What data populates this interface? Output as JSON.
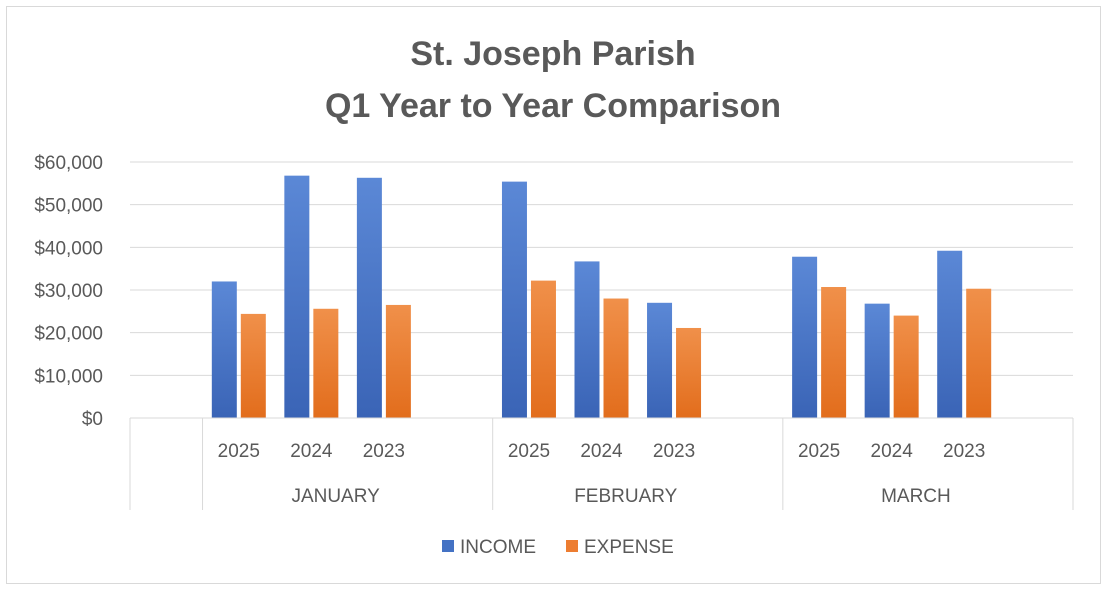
{
  "chart_data": {
    "type": "bar",
    "title_lines": [
      "St. Joseph Parish",
      "Q1 Year to Year Comparison"
    ],
    "xlabel": "",
    "ylabel": "",
    "ylim": [
      0,
      60000
    ],
    "y_ticks": [
      0,
      10000,
      20000,
      30000,
      40000,
      50000,
      60000
    ],
    "y_tick_labels": [
      "$0",
      "$10,000",
      "$20,000",
      "$30,000",
      "$40,000",
      "$50,000",
      "$60,000"
    ],
    "groups": [
      {
        "label": "JANUARY",
        "categories": [
          "2025",
          "2024",
          "2023"
        ]
      },
      {
        "label": "FEBRUARY",
        "categories": [
          "2025",
          "2024",
          "2023"
        ]
      },
      {
        "label": "MARCH",
        "categories": [
          "2025",
          "2024",
          "2023"
        ]
      }
    ],
    "series": [
      {
        "name": "INCOME",
        "color": "#4472c4",
        "values": [
          32000,
          56800,
          56300,
          55400,
          36700,
          27000,
          37800,
          26800,
          39200
        ]
      },
      {
        "name": "EXPENSE",
        "color": "#ed7d31",
        "values": [
          24400,
          25600,
          26500,
          32200,
          28000,
          21100,
          30700,
          24000,
          30300
        ]
      }
    ],
    "grid": true,
    "legend_position": "bottom"
  }
}
